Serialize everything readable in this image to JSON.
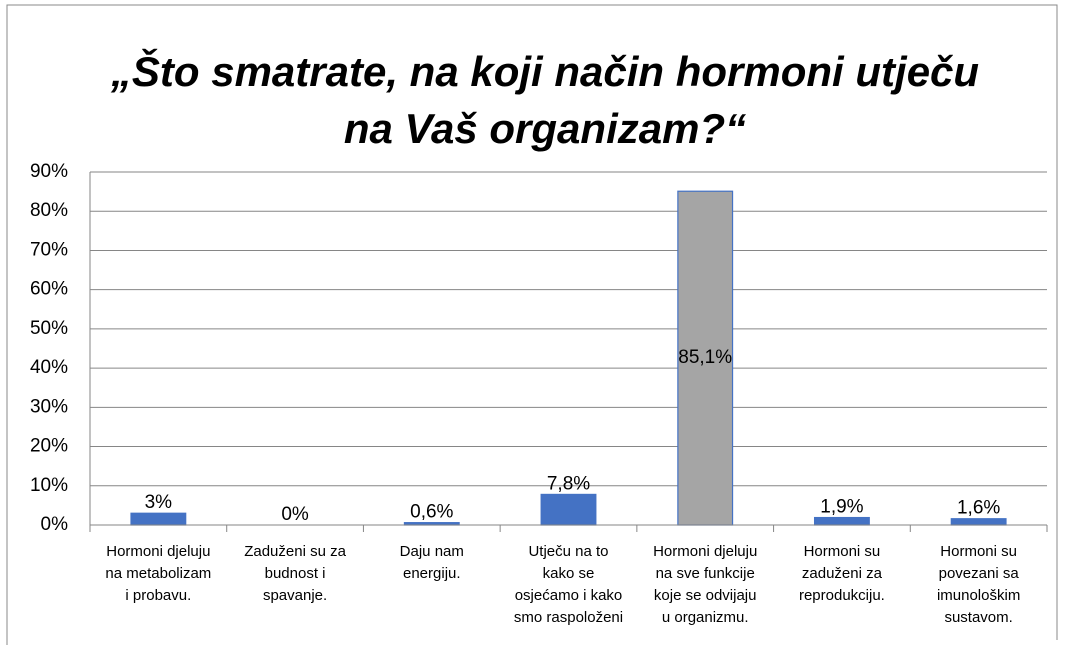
{
  "chart_data": {
    "type": "bar",
    "title": [
      "„Što smatrate, na koji način hormoni utječu",
      "na Vaš  organizam?“"
    ],
    "categories": [
      [
        "Hormoni djeluju",
        "na metabolizam",
        "i probavu."
      ],
      [
        "Zaduženi su za",
        "budnost i",
        "spavanje."
      ],
      [
        "Daju nam",
        "energiju."
      ],
      [
        "Utječu na to",
        "kako se",
        "osjećamo i kako",
        "smo raspoloženi"
      ],
      [
        "Hormoni djeluju",
        "na sve funkcije",
        "koje se odvijaju",
        "u organizmu."
      ],
      [
        "Hormoni su",
        "zaduženi za",
        "reprodukciju."
      ],
      [
        "Hormoni su",
        "povezani sa",
        "imunološkim",
        "sustavom."
      ]
    ],
    "values": [
      3,
      0,
      0.6,
      7.8,
      85.1,
      1.9,
      1.6
    ],
    "value_labels": [
      "3%",
      "0%",
      "0,6%",
      "7,8%",
      "85,1%",
      "1,9%",
      "1,6%"
    ],
    "colors": [
      "#4472c4",
      "#4472c4",
      "#4472c4",
      "#4472c4",
      "#a5a5a5",
      "#4472c4",
      "#4472c4"
    ],
    "ylim": [
      0,
      90
    ],
    "yticks": [
      {
        "value": 0,
        "label": "0%"
      },
      {
        "value": 10,
        "label": "10%"
      },
      {
        "value": 20,
        "label": "20%"
      },
      {
        "value": 30,
        "label": "30%"
      },
      {
        "value": 40,
        "label": "40%"
      },
      {
        "value": 50,
        "label": "50%"
      },
      {
        "value": 60,
        "label": "60%"
      },
      {
        "value": 70,
        "label": "70%"
      },
      {
        "value": 80,
        "label": "80%"
      },
      {
        "value": 90,
        "label": "90%"
      }
    ],
    "grid": true
  }
}
